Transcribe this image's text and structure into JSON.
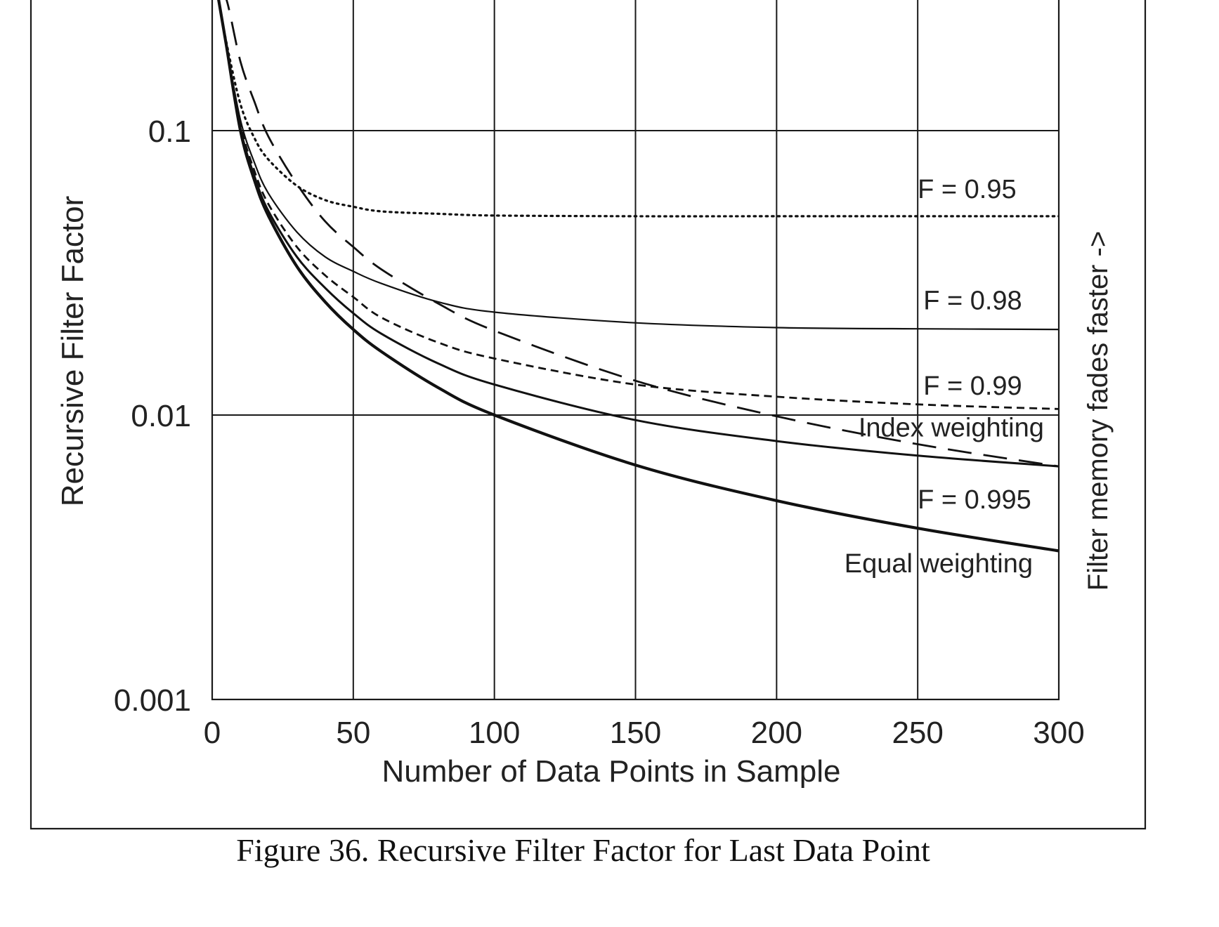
{
  "chart_data": {
    "type": "line",
    "ylabel": "Recursive Filter Factor",
    "xlabel": "Number of Data Points in Sample",
    "right_label": "Filter memory fades faster ->",
    "caption": "Figure 36. Recursive Filter Factor for Last Data Point",
    "xlim": [
      0,
      300
    ],
    "ylim": [
      0.001,
      0.3
    ],
    "yscale": "log",
    "grid": true,
    "x_ticks": [
      0,
      50,
      100,
      150,
      200,
      250,
      300
    ],
    "y_ticks": [
      {
        "value": 0.1,
        "label": "0.1"
      },
      {
        "value": 0.01,
        "label": "0.01"
      },
      {
        "value": 0.001,
        "label": "0.001"
      }
    ],
    "series": [
      {
        "name": "F = 0.95",
        "style": "dotted",
        "points": [
          [
            2,
            0.3
          ],
          [
            5,
            0.205
          ],
          [
            10,
            0.124
          ],
          [
            15,
            0.094
          ],
          [
            20,
            0.079
          ],
          [
            30,
            0.064
          ],
          [
            40,
            0.057
          ],
          [
            50,
            0.054
          ],
          [
            60,
            0.052
          ],
          [
            80,
            0.051
          ],
          [
            100,
            0.0503
          ],
          [
            150,
            0.05
          ],
          [
            200,
            0.05
          ],
          [
            300,
            0.05
          ]
        ]
      },
      {
        "name": "F = 0.98",
        "style": "solid-thin",
        "points": [
          [
            2,
            0.3
          ],
          [
            5,
            0.2
          ],
          [
            10,
            0.109
          ],
          [
            15,
            0.077
          ],
          [
            20,
            0.06
          ],
          [
            30,
            0.044
          ],
          [
            40,
            0.036
          ],
          [
            50,
            0.032
          ],
          [
            60,
            0.029
          ],
          [
            80,
            0.025
          ],
          [
            100,
            0.023
          ],
          [
            150,
            0.0211
          ],
          [
            200,
            0.0203
          ],
          [
            250,
            0.0201
          ],
          [
            300,
            0.02
          ]
        ]
      },
      {
        "name": "F = 0.99",
        "style": "short-dash",
        "points": [
          [
            2,
            0.3
          ],
          [
            5,
            0.2
          ],
          [
            10,
            0.105
          ],
          [
            15,
            0.072
          ],
          [
            20,
            0.055
          ],
          [
            30,
            0.039
          ],
          [
            40,
            0.031
          ],
          [
            50,
            0.026
          ],
          [
            60,
            0.022
          ],
          [
            80,
            0.018
          ],
          [
            100,
            0.0158
          ],
          [
            150,
            0.0128
          ],
          [
            200,
            0.0116
          ],
          [
            250,
            0.0109
          ],
          [
            300,
            0.0105
          ]
        ]
      },
      {
        "name": "Index weighting",
        "style": "long-dash",
        "points": [
          [
            2,
            0.3
          ],
          [
            5,
            0.29
          ],
          [
            10,
            0.175
          ],
          [
            15,
            0.126
          ],
          [
            20,
            0.095
          ],
          [
            30,
            0.065
          ],
          [
            40,
            0.048
          ],
          [
            50,
            0.039
          ],
          [
            60,
            0.0325
          ],
          [
            80,
            0.0247
          ],
          [
            100,
            0.0198
          ],
          [
            150,
            0.0132
          ],
          [
            200,
            0.0099
          ],
          [
            250,
            0.0079
          ],
          [
            300,
            0.0066
          ]
        ]
      },
      {
        "name": "F = 0.995",
        "style": "solid-medium",
        "points": [
          [
            2,
            0.3
          ],
          [
            5,
            0.2
          ],
          [
            10,
            0.102
          ],
          [
            15,
            0.069
          ],
          [
            20,
            0.052
          ],
          [
            30,
            0.036
          ],
          [
            40,
            0.028
          ],
          [
            50,
            0.0228
          ],
          [
            60,
            0.0193
          ],
          [
            80,
            0.0152
          ],
          [
            100,
            0.0128
          ],
          [
            150,
            0.0096
          ],
          [
            200,
            0.0081
          ],
          [
            250,
            0.0072
          ],
          [
            300,
            0.0066
          ]
        ]
      },
      {
        "name": "Equal weighting",
        "style": "solid-thick",
        "points": [
          [
            2,
            0.3
          ],
          [
            5,
            0.2
          ],
          [
            10,
            0.1
          ],
          [
            15,
            0.0667
          ],
          [
            20,
            0.05
          ],
          [
            30,
            0.0333
          ],
          [
            40,
            0.025
          ],
          [
            50,
            0.02
          ],
          [
            60,
            0.0167
          ],
          [
            80,
            0.0125
          ],
          [
            100,
            0.01
          ],
          [
            150,
            0.00667
          ],
          [
            200,
            0.005
          ],
          [
            250,
            0.004
          ],
          [
            300,
            0.00333
          ]
        ]
      }
    ],
    "series_labels": [
      {
        "text": "F = 0.95",
        "x": 250,
        "y": 0.058
      },
      {
        "text": "F = 0.98",
        "x": 252,
        "y": 0.0235
      },
      {
        "text": "F = 0.99",
        "x": 252,
        "y": 0.0118
      },
      {
        "text": "Index weighting",
        "x": 229,
        "y": 0.0084
      },
      {
        "text": "F = 0.995",
        "x": 250,
        "y": 0.0047
      },
      {
        "text": "Equal weighting",
        "x": 224,
        "y": 0.0028
      }
    ]
  }
}
